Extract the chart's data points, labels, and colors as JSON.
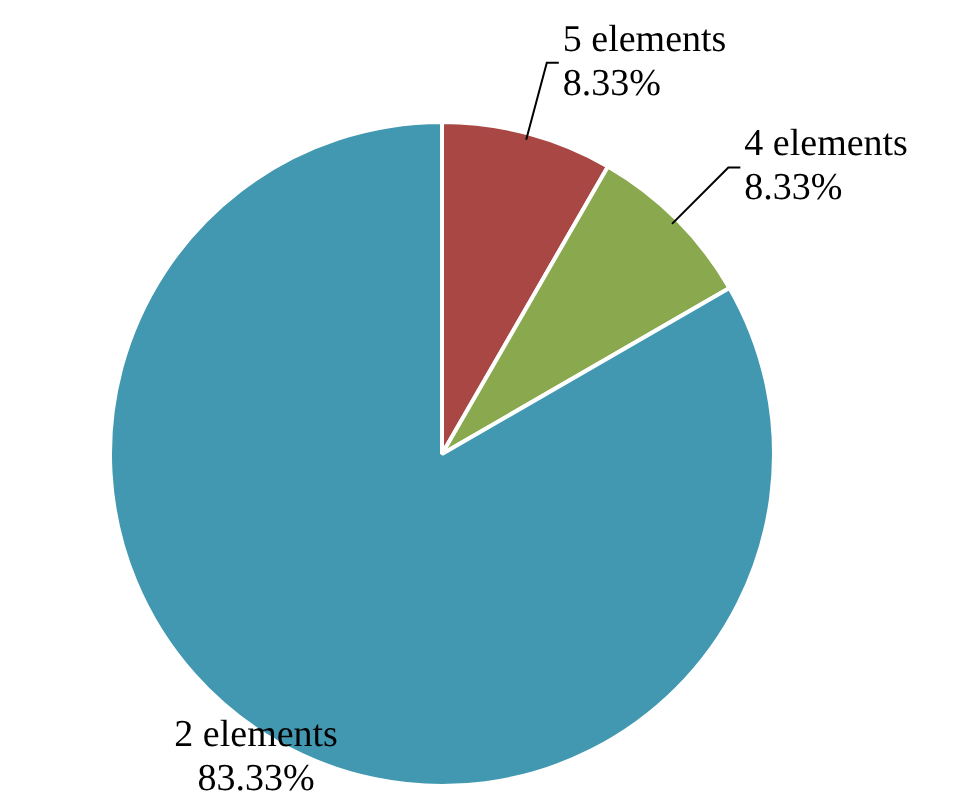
{
  "chart_data": {
    "type": "pie",
    "categories": [
      "5 elements",
      "4 elements",
      "2 elements"
    ],
    "values": [
      8.33,
      8.33,
      83.33
    ],
    "colors": [
      "#a84744",
      "#8aa84e",
      "#4298b0"
    ],
    "value_labels": [
      "8.33%",
      "8.33%",
      "83.33%"
    ],
    "legend": false
  }
}
